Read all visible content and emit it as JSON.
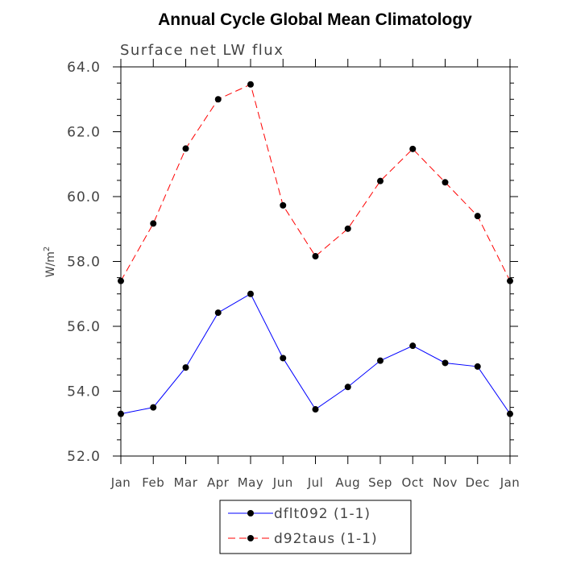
{
  "chart_data": {
    "type": "line",
    "title": "Annual Cycle Global Mean Climatology",
    "subtitle": "Surface net LW flux",
    "xlabel": "",
    "ylabel": "W/m",
    "ylabel_sup": "2",
    "ylim": [
      52.0,
      64.0
    ],
    "y_ticks": [
      "52.0",
      "54.0",
      "56.0",
      "58.0",
      "60.0",
      "62.0",
      "64.0"
    ],
    "categories": [
      "Jan",
      "Feb",
      "Mar",
      "Apr",
      "May",
      "Jun",
      "Jul",
      "Aug",
      "Sep",
      "Oct",
      "Nov",
      "Dec",
      "Jan"
    ],
    "series": [
      {
        "name": "dflt092 (1-1)",
        "color": "#0000ff",
        "dash": "solid",
        "values": [
          53.3,
          53.5,
          54.73,
          56.42,
          57.0,
          55.02,
          53.44,
          54.13,
          54.94,
          55.4,
          54.87,
          54.76,
          53.3
        ]
      },
      {
        "name": "d92taus (1-1)",
        "color": "#ff0000",
        "dash": "dashed",
        "values": [
          57.4,
          59.17,
          61.48,
          63.0,
          63.46,
          59.73,
          58.16,
          59.01,
          60.48,
          61.47,
          60.44,
          59.4,
          57.4
        ]
      }
    ],
    "legend_position": "bottom-center"
  }
}
